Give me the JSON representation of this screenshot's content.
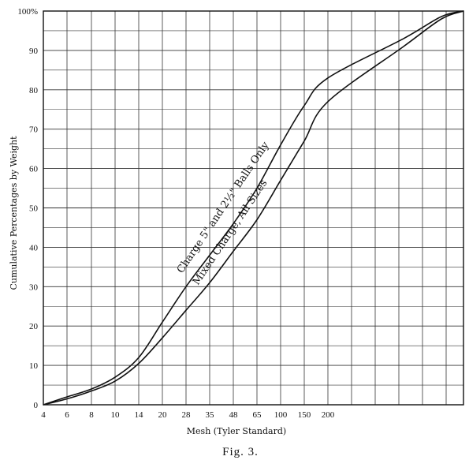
{
  "chart_data": {
    "type": "line",
    "title": "",
    "xlabel": "Mesh (Tyler Standard)",
    "ylabel": "Cumulative Percentages by Weight",
    "x_scale": "sieve mesh (equal spacing per sieve)",
    "x_ticks": [
      "4",
      "6",
      "8",
      "10",
      "14",
      "20",
      "28",
      "35",
      "48",
      "65",
      "100",
      "150",
      "200"
    ],
    "y_ticks": [
      "0",
      "10",
      "20",
      "30",
      "40",
      "50",
      "60",
      "70",
      "80",
      "90",
      "100%"
    ],
    "ylim": [
      0,
      100
    ],
    "grid": true,
    "series": [
      {
        "name": "Charge 5\" and 2½\" Balls Only",
        "x": [
          "4",
          "6",
          "8",
          "10",
          "14",
          "20",
          "28",
          "35",
          "48",
          "65",
          "100",
          "150",
          "200"
        ],
        "y": [
          0,
          2,
          4,
          7,
          12,
          21,
          30,
          38,
          46,
          55,
          66,
          76,
          83
        ]
      },
      {
        "name": "Mixed Charge, All Sizes",
        "x": [
          "4",
          "6",
          "8",
          "10",
          "14",
          "20",
          "28",
          "35",
          "48",
          "65",
          "100",
          "150",
          "200"
        ],
        "y": [
          0,
          1.5,
          3.5,
          6,
          10.5,
          17,
          24,
          31,
          39,
          47,
          57,
          67,
          77
        ]
      }
    ]
  },
  "figure": {
    "caption": "Fig. 3."
  }
}
